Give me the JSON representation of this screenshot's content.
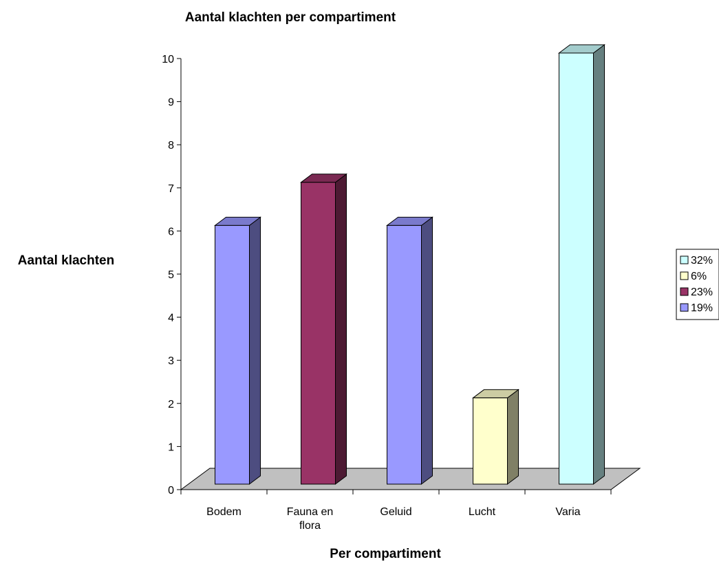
{
  "chart_data": {
    "type": "bar",
    "title": "Aantal klachten per compartiment",
    "xlabel": "Per compartiment",
    "ylabel": "Aantal klachten",
    "ylim": [
      0,
      10
    ],
    "yticks": [
      "0",
      "1",
      "2",
      "3",
      "4",
      "5",
      "6",
      "7",
      "8",
      "9",
      "10"
    ],
    "categories": [
      [
        "Bodem"
      ],
      [
        "Fauna en",
        "flora"
      ],
      [
        "Geluid"
      ],
      [
        "Lucht"
      ],
      [
        "Varia"
      ]
    ],
    "values": [
      6,
      7,
      6,
      2,
      10
    ],
    "bar_colors": [
      "#9999ff",
      "#993366",
      "#9999ff",
      "#ffffcc",
      "#ccffff"
    ],
    "bar_side_colors": [
      "#4d4d80",
      "#4d1a33",
      "#4d4d80",
      "#808066",
      "#668080"
    ],
    "bar_top_colors": [
      "#7a7acc",
      "#7a2952",
      "#7a7acc",
      "#ccccA3",
      "#a3cccc"
    ],
    "floor_color": "#c0c0c0",
    "legend_position": "right",
    "legend": [
      {
        "label": "32%",
        "color": "#ccffff"
      },
      {
        "label": "6%",
        "color": "#ffffcc"
      },
      {
        "label": "23%",
        "color": "#993366"
      },
      {
        "label": "19%",
        "color": "#9999ff"
      }
    ]
  }
}
